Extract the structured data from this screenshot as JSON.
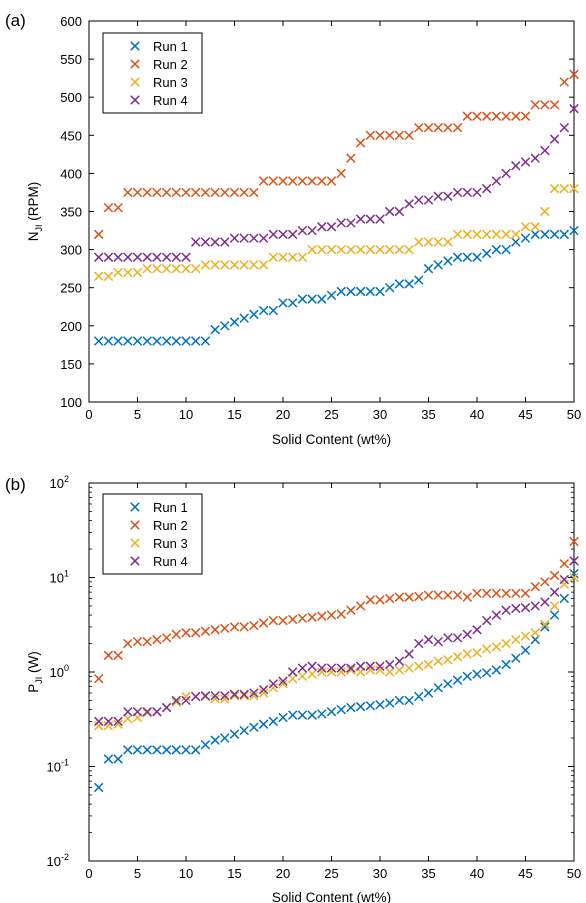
{
  "chart_data": [
    {
      "panel": "(a)",
      "type": "scatter",
      "xlabel": "Solid Content (wt%)",
      "ylabel_main": "N",
      "ylabel_sub": "JI",
      "ylabel_unit": "(RPM)",
      "xlim": [
        0,
        50
      ],
      "ylim": [
        100,
        600
      ],
      "yscale": "linear",
      "xticks": [
        0,
        5,
        10,
        15,
        20,
        25,
        30,
        35,
        40,
        45,
        50
      ],
      "yticks": [
        100,
        150,
        200,
        250,
        300,
        350,
        400,
        450,
        500,
        550,
        600
      ],
      "grid": false,
      "legend": "top-left",
      "marker": "x",
      "x": [
        1,
        2,
        3,
        4,
        5,
        6,
        7,
        8,
        9,
        10,
        11,
        12,
        13,
        14,
        15,
        16,
        17,
        18,
        19,
        20,
        21,
        22,
        23,
        24,
        25,
        26,
        27,
        28,
        29,
        30,
        31,
        32,
        33,
        34,
        35,
        36,
        37,
        38,
        39,
        40,
        41,
        42,
        43,
        44,
        45,
        46,
        47,
        48,
        49,
        50
      ],
      "series": [
        {
          "name": "Run 1",
          "color": "#0072BD",
          "values": [
            180,
            180,
            180,
            180,
            180,
            180,
            180,
            180,
            180,
            180,
            180,
            180,
            195,
            200,
            205,
            210,
            215,
            220,
            220,
            230,
            230,
            235,
            235,
            235,
            240,
            245,
            245,
            245,
            245,
            245,
            250,
            255,
            255,
            260,
            275,
            280,
            285,
            290,
            290,
            290,
            295,
            300,
            300,
            310,
            315,
            320,
            320,
            320,
            320,
            325
          ]
        },
        {
          "name": "Run 2",
          "color": "#D95319",
          "values": [
            320,
            355,
            355,
            375,
            375,
            375,
            375,
            375,
            375,
            375,
            375,
            375,
            375,
            375,
            375,
            375,
            375,
            390,
            390,
            390,
            390,
            390,
            390,
            390,
            390,
            400,
            420,
            440,
            450,
            450,
            450,
            450,
            450,
            460,
            460,
            460,
            460,
            460,
            475,
            475,
            475,
            475,
            475,
            475,
            475,
            490,
            490,
            490,
            520,
            530
          ]
        },
        {
          "name": "Run 3",
          "color": "#EDB120",
          "values": [
            265,
            265,
            270,
            270,
            270,
            275,
            275,
            275,
            275,
            275,
            275,
            280,
            280,
            280,
            280,
            280,
            280,
            280,
            290,
            290,
            290,
            290,
            300,
            300,
            300,
            300,
            300,
            300,
            300,
            300,
            300,
            300,
            300,
            310,
            310,
            310,
            310,
            320,
            320,
            320,
            320,
            320,
            320,
            320,
            330,
            330,
            350,
            380,
            380,
            380
          ]
        },
        {
          "name": "Run 4",
          "color": "#7E2F8E",
          "values": [
            290,
            290,
            290,
            290,
            290,
            290,
            290,
            290,
            290,
            290,
            310,
            310,
            310,
            310,
            315,
            315,
            315,
            315,
            320,
            320,
            320,
            325,
            325,
            330,
            330,
            335,
            335,
            340,
            340,
            340,
            350,
            350,
            360,
            365,
            365,
            370,
            370,
            375,
            375,
            375,
            380,
            390,
            400,
            410,
            415,
            420,
            430,
            445,
            460,
            485
          ]
        }
      ]
    },
    {
      "panel": "(b)",
      "type": "scatter",
      "xlabel": "Solid Content (wt%)",
      "ylabel_main": "P",
      "ylabel_sub": "JI",
      "ylabel_unit": "(W)",
      "xlim": [
        0,
        50
      ],
      "ylim": [
        0.01,
        100
      ],
      "yscale": "log",
      "xticks": [
        0,
        5,
        10,
        15,
        20,
        25,
        30,
        35,
        40,
        45,
        50
      ],
      "yticks": [
        {
          "base": "10",
          "exp": "-2",
          "value": 0.01
        },
        {
          "base": "10",
          "exp": "-1",
          "value": 0.1
        },
        {
          "base": "10",
          "exp": "0",
          "value": 1
        },
        {
          "base": "10",
          "exp": "1",
          "value": 10
        },
        {
          "base": "10",
          "exp": "2",
          "value": 100
        }
      ],
      "grid": false,
      "legend": "top-left",
      "marker": "x",
      "x": [
        1,
        2,
        3,
        4,
        5,
        6,
        7,
        8,
        9,
        10,
        11,
        12,
        13,
        14,
        15,
        16,
        17,
        18,
        19,
        20,
        21,
        22,
        23,
        24,
        25,
        26,
        27,
        28,
        29,
        30,
        31,
        32,
        33,
        34,
        35,
        36,
        37,
        38,
        39,
        40,
        41,
        42,
        43,
        44,
        45,
        46,
        47,
        48,
        49,
        50
      ],
      "series": [
        {
          "name": "Run 1",
          "color": "#0072BD",
          "values": [
            0.06,
            0.12,
            0.12,
            0.15,
            0.15,
            0.15,
            0.15,
            0.15,
            0.15,
            0.15,
            0.15,
            0.17,
            0.19,
            0.2,
            0.22,
            0.24,
            0.26,
            0.28,
            0.3,
            0.33,
            0.35,
            0.35,
            0.35,
            0.36,
            0.38,
            0.4,
            0.42,
            0.43,
            0.44,
            0.45,
            0.47,
            0.5,
            0.5,
            0.55,
            0.6,
            0.68,
            0.75,
            0.82,
            0.9,
            0.95,
            0.98,
            1.05,
            1.2,
            1.4,
            1.7,
            2.2,
            3.0,
            4.0,
            6.0,
            11
          ]
        },
        {
          "name": "Run 2",
          "color": "#D95319",
          "values": [
            0.85,
            1.5,
            1.5,
            2.0,
            2.1,
            2.1,
            2.2,
            2.3,
            2.5,
            2.6,
            2.6,
            2.7,
            2.8,
            2.9,
            3.0,
            3.0,
            3.1,
            3.3,
            3.5,
            3.5,
            3.6,
            3.7,
            3.8,
            3.9,
            4.0,
            4.1,
            4.5,
            5.0,
            5.8,
            5.8,
            6.0,
            6.2,
            6.2,
            6.3,
            6.5,
            6.5,
            6.5,
            6.5,
            6.2,
            6.8,
            6.8,
            6.8,
            6.8,
            6.8,
            6.8,
            8.0,
            9.0,
            10.5,
            14,
            24
          ]
        },
        {
          "name": "Run 3",
          "color": "#EDB120",
          "values": [
            0.27,
            0.27,
            0.28,
            0.32,
            0.33,
            0.37,
            0.38,
            0.42,
            0.48,
            0.55,
            0.55,
            0.55,
            0.52,
            0.52,
            0.56,
            0.56,
            0.56,
            0.6,
            0.68,
            0.75,
            0.85,
            0.9,
            0.95,
            1.0,
            1.0,
            1.0,
            1.05,
            1.0,
            1.05,
            1.05,
            1.0,
            1.05,
            1.1,
            1.15,
            1.2,
            1.3,
            1.35,
            1.45,
            1.55,
            1.6,
            1.75,
            1.85,
            2.0,
            2.2,
            2.4,
            2.6,
            3.2,
            5.0,
            8.5,
            10
          ]
        },
        {
          "name": "Run 4",
          "color": "#7E2F8E",
          "values": [
            0.3,
            0.3,
            0.3,
            0.38,
            0.38,
            0.38,
            0.38,
            0.42,
            0.5,
            0.5,
            0.55,
            0.56,
            0.56,
            0.56,
            0.58,
            0.58,
            0.6,
            0.65,
            0.75,
            0.8,
            1.0,
            1.1,
            1.15,
            1.1,
            1.1,
            1.1,
            1.1,
            1.15,
            1.15,
            1.15,
            1.2,
            1.3,
            1.55,
            2.0,
            2.2,
            2.1,
            2.3,
            2.3,
            2.5,
            2.8,
            3.5,
            4.0,
            4.5,
            4.7,
            4.8,
            5.0,
            5.5,
            7.0,
            9.5,
            15
          ]
        }
      ]
    }
  ]
}
